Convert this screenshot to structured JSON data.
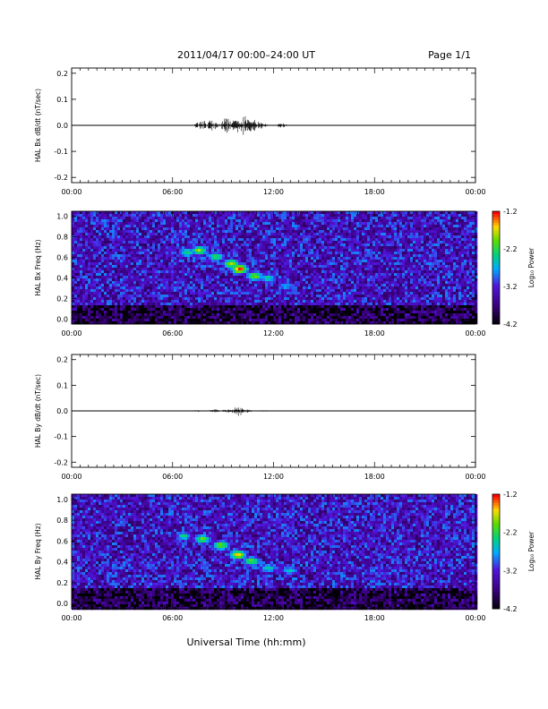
{
  "header": {
    "title": "2011/04/17   00:00–24:00 UT",
    "page": "Page 1/1"
  },
  "chart_data": [
    {
      "type": "line",
      "ylabel": "HAL Bx dB/dt (nT/sec)",
      "ylim": [
        -0.22,
        0.22
      ],
      "yticks": [
        "-0.2",
        "-0.1",
        "0.0",
        "0.1",
        "0.2"
      ],
      "ytick_values": [
        -0.2,
        -0.1,
        0.0,
        0.1,
        0.2
      ],
      "xlim": [
        "00:00",
        "24:00"
      ],
      "xticks": [
        "00:00",
        "06:00",
        "12:00",
        "18:00",
        "00:00"
      ],
      "x_hours": [
        0,
        6,
        12,
        18,
        24
      ],
      "activity": [
        {
          "hour": 7.5,
          "amplitude": 0.01
        },
        {
          "hour": 7.8,
          "amplitude": 0.02
        },
        {
          "hour": 8.3,
          "amplitude": 0.025
        },
        {
          "hour": 9.2,
          "amplitude": 0.03
        },
        {
          "hour": 9.8,
          "amplitude": 0.035
        },
        {
          "hour": 10.2,
          "amplitude": 0.04
        },
        {
          "hour": 10.7,
          "amplitude": 0.03
        },
        {
          "hour": 11.2,
          "amplitude": 0.015
        },
        {
          "hour": 12.5,
          "amplitude": 0.01
        }
      ]
    },
    {
      "type": "heatmap",
      "ylabel": "HAL Bx Freq (Hz)",
      "ylim": [
        -0.05,
        1.05
      ],
      "yticks": [
        "0.0",
        "0.2",
        "0.4",
        "0.6",
        "0.8",
        "1.0"
      ],
      "ytick_values": [
        0.0,
        0.2,
        0.4,
        0.6,
        0.8,
        1.0
      ],
      "xlim": [
        "00:00",
        "24:00"
      ],
      "xticks": [
        "00:00",
        "06:00",
        "12:00",
        "18:00",
        "00:00"
      ],
      "x_hours": [
        0,
        6,
        12,
        18,
        24
      ],
      "colorbar": {
        "label": "Log₁₀ Power",
        "range": [
          -4.2,
          -1.2
        ],
        "ticks": [
          "-1.2",
          "-2.2",
          "-3.2",
          "-4.2"
        ],
        "tick_values": [
          -1.2,
          -2.2,
          -3.2,
          -4.2
        ]
      },
      "features": [
        {
          "hour": 6.8,
          "freq": 0.66,
          "log_power": -2.3
        },
        {
          "hour": 7.5,
          "freq": 0.68,
          "log_power": -1.9
        },
        {
          "hour": 8.5,
          "freq": 0.62,
          "log_power": -2.1
        },
        {
          "hour": 9.4,
          "freq": 0.55,
          "log_power": -1.8
        },
        {
          "hour": 9.9,
          "freq": 0.5,
          "log_power": -1.3
        },
        {
          "hour": 10.8,
          "freq": 0.43,
          "log_power": -1.9
        },
        {
          "hour": 11.6,
          "freq": 0.41,
          "log_power": -2.3
        },
        {
          "hour": 12.7,
          "freq": 0.33,
          "log_power": -2.6
        }
      ]
    },
    {
      "type": "line",
      "ylabel": "HAL By dB/dt (nT/sec)",
      "ylim": [
        -0.22,
        0.22
      ],
      "yticks": [
        "-0.2",
        "-0.1",
        "0.0",
        "0.1",
        "0.2"
      ],
      "ytick_values": [
        -0.2,
        -0.1,
        0.0,
        0.1,
        0.2
      ],
      "xlim": [
        "00:00",
        "24:00"
      ],
      "xticks": [
        "00:00",
        "06:00",
        "12:00",
        "18:00",
        "00:00"
      ],
      "x_hours": [
        0,
        6,
        12,
        18,
        24
      ],
      "activity": [
        {
          "hour": 7.5,
          "amplitude": 0.004
        },
        {
          "hour": 8.5,
          "amplitude": 0.006
        },
        {
          "hour": 9.3,
          "amplitude": 0.008
        },
        {
          "hour": 9.9,
          "amplitude": 0.02
        },
        {
          "hour": 10.4,
          "amplitude": 0.007
        },
        {
          "hour": 11.5,
          "amplitude": 0.004
        }
      ]
    },
    {
      "type": "heatmap",
      "ylabel": "HAL By Freq (Hz)",
      "ylim": [
        -0.05,
        1.05
      ],
      "yticks": [
        "0.0",
        "0.2",
        "0.4",
        "0.6",
        "0.8",
        "1.0"
      ],
      "ytick_values": [
        0.0,
        0.2,
        0.4,
        0.6,
        0.8,
        1.0
      ],
      "xlim": [
        "00:00",
        "24:00"
      ],
      "xticks": [
        "00:00",
        "06:00",
        "12:00",
        "18:00",
        "00:00"
      ],
      "x_hours": [
        0,
        6,
        12,
        18,
        24
      ],
      "colorbar": {
        "label": "Log₁₀ Power",
        "range": [
          -4.2,
          -1.2
        ],
        "ticks": [
          "-1.2",
          "-2.2",
          "-3.2",
          "-4.2"
        ],
        "tick_values": [
          -1.2,
          -2.2,
          -3.2,
          -4.2
        ]
      },
      "features": [
        {
          "hour": 6.6,
          "freq": 0.66,
          "log_power": -2.4
        },
        {
          "hour": 7.7,
          "freq": 0.63,
          "log_power": -2.0
        },
        {
          "hour": 8.8,
          "freq": 0.57,
          "log_power": -1.9
        },
        {
          "hour": 9.8,
          "freq": 0.48,
          "log_power": -1.6
        },
        {
          "hour": 10.6,
          "freq": 0.42,
          "log_power": -2.0
        },
        {
          "hour": 11.6,
          "freq": 0.35,
          "log_power": -2.4
        },
        {
          "hour": 12.9,
          "freq": 0.33,
          "log_power": -2.5
        }
      ]
    }
  ],
  "footer": {
    "xlabel": "Universal Time (hh:mm)"
  }
}
